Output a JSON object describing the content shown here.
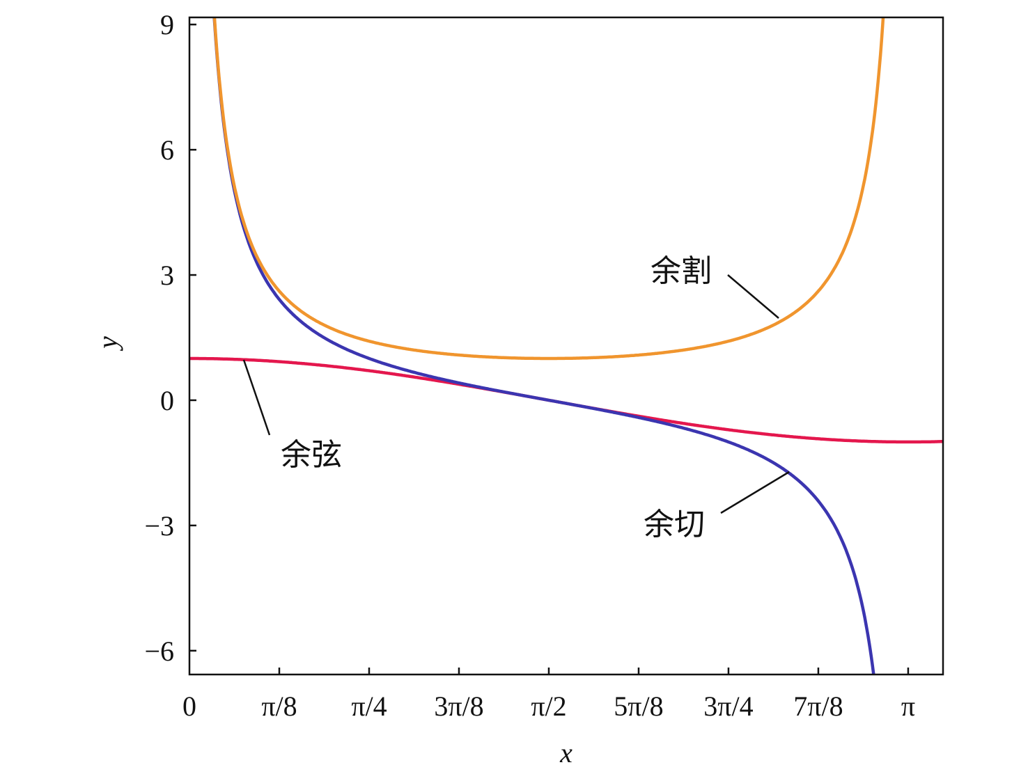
{
  "chart_data": {
    "type": "line",
    "title": "",
    "xlabel": "x",
    "ylabel": "y",
    "xlim": [
      0,
      3.294
    ],
    "ylim": [
      -6.57,
      9.17
    ],
    "grid": false,
    "legend": "none",
    "x_ticks": [
      {
        "value": 0,
        "label": "0"
      },
      {
        "value": 0.3927,
        "label": "π/8"
      },
      {
        "value": 0.7854,
        "label": "π/4"
      },
      {
        "value": 1.1781,
        "label": "3π/8"
      },
      {
        "value": 1.5708,
        "label": "π/2"
      },
      {
        "value": 1.9635,
        "label": "5π/8"
      },
      {
        "value": 2.3562,
        "label": "3π/4"
      },
      {
        "value": 2.7489,
        "label": "7π/8"
      },
      {
        "value": 3.1416,
        "label": "π"
      }
    ],
    "y_ticks": [
      {
        "value": 9,
        "label": "9"
      },
      {
        "value": 6,
        "label": "6"
      },
      {
        "value": 3,
        "label": "3"
      },
      {
        "value": 0,
        "label": "0"
      },
      {
        "value": -3,
        "label": "−3"
      },
      {
        "value": -6,
        "label": "−6"
      }
    ],
    "series": [
      {
        "name": "余弦",
        "function": "cos",
        "x_range": [
          0,
          3.294
        ],
        "color": "#e4174d",
        "annotation": {
          "text": "余弦",
          "point": [
            0.62,
            0.98
          ]
        }
      },
      {
        "name": "余切",
        "function": "cot",
        "x_range": [
          0.1,
          3.0
        ],
        "color": "#3b35b0",
        "annotation": {
          "text": "余切",
          "point": [
            2.69,
            -1.73
          ]
        }
      },
      {
        "name": "余割",
        "function": "csc",
        "x_range": [
          0.1,
          3.05
        ],
        "color": "#f0952e",
        "annotation": {
          "text": "余割",
          "point": [
            2.63,
            2.0
          ]
        }
      }
    ]
  }
}
